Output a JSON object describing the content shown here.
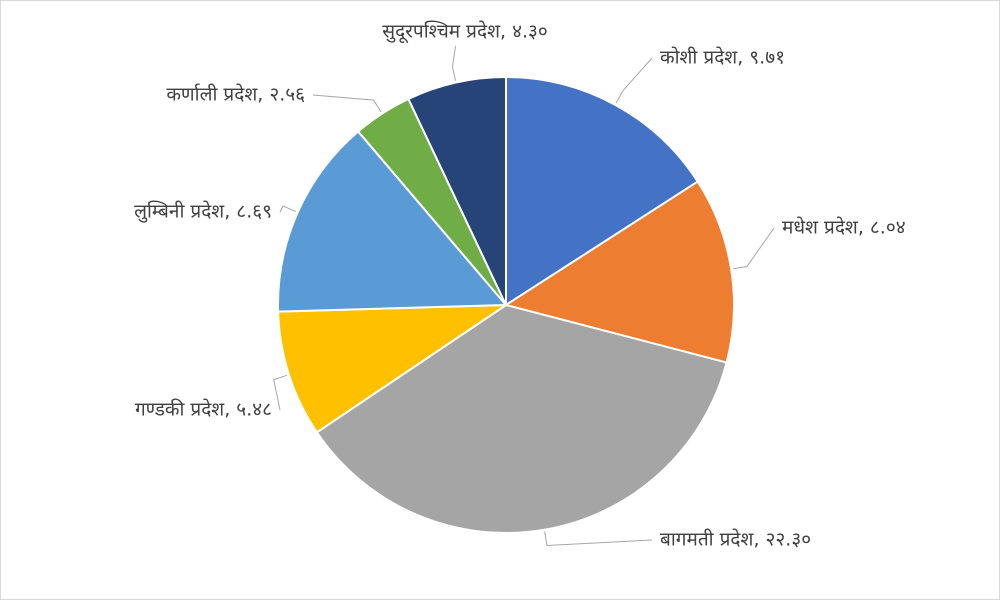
{
  "chart_data": {
    "type": "pie",
    "values": [
      9.71,
      8.04,
      22.3,
      5.48,
      8.69,
      2.56,
      4.3
    ],
    "value_labels": [
      "कोशी प्रदेश, ९.७१",
      "मधेश प्रदेश, ८.०४",
      "बागमती प्रदेश, २२.३०",
      "गण्डकी प्रदेश, ५.४८",
      "लुम्बिनी प्रदेश, ८.६९",
      "कर्णाली प्रदेश, २.५६",
      "सुदूरपश्चिम प्रदेश, ४.३०"
    ],
    "colors": [
      "#4472c4",
      "#ed7d31",
      "#a5a5a5",
      "#ffc000",
      "#5b9bd5",
      "#70ad47",
      "#264478"
    ]
  }
}
